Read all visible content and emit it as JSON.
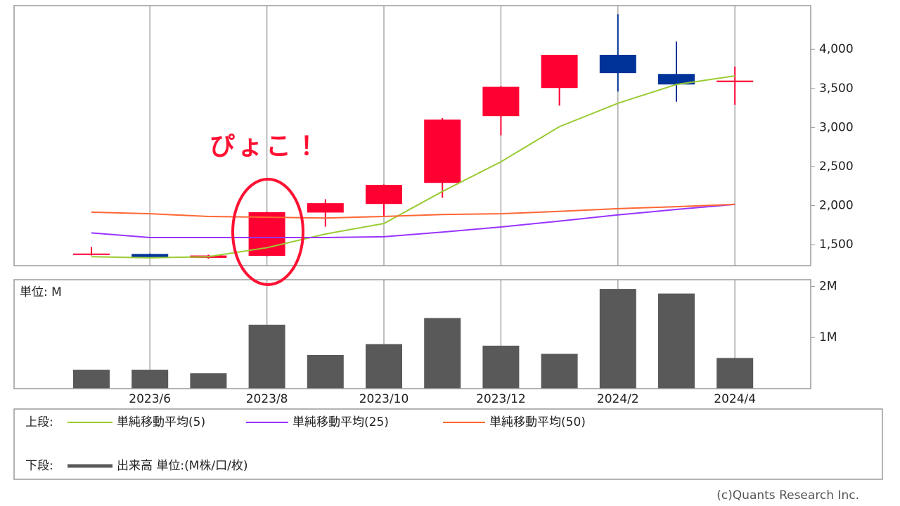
{
  "chart_data": [
    {
      "type": "candlestick",
      "open": [
        1370,
        1380,
        1330,
        1355,
        1910,
        2020,
        2290,
        3145,
        3505,
        3930,
        3685,
        3580
      ],
      "high": [
        1470,
        1385,
        1370,
        1920,
        2080,
        2270,
        3120,
        3530,
        3930,
        4450,
        4100,
        3780
      ],
      "low": [
        1360,
        1330,
        1320,
        1350,
        1730,
        1870,
        2100,
        2900,
        3280,
        3460,
        3330,
        3290
      ],
      "close": [
        1385,
        1340,
        1360,
        1915,
        2030,
        2265,
        3100,
        3520,
        3930,
        3695,
        3550,
        3600
      ],
      "up_color": "#ff0033",
      "down_color": "#003399",
      "series": [
        {
          "name": "単純移動平均(5)",
          "color": "#99cc33",
          "values": [
            1345,
            1330,
            1345,
            1460,
            1635,
            1770,
            2180,
            2560,
            3010,
            3310,
            3550,
            3660
          ]
        },
        {
          "name": "単純移動平均(25)",
          "color": "#9933ff",
          "values": [
            1650,
            1590,
            1590,
            1590,
            1590,
            1600,
            1660,
            1725,
            1800,
            1880,
            1950,
            2015
          ]
        },
        {
          "name": "単純移動平均(50)",
          "color": "#ff6633",
          "values": [
            1915,
            1895,
            1860,
            1850,
            1840,
            1860,
            1885,
            1895,
            1925,
            1960,
            1985,
            2015
          ]
        }
      ],
      "ylim": [
        1230,
        4560
      ],
      "yticks": [
        {
          "value": 1500,
          "label": "1,500"
        },
        {
          "value": 2000,
          "label": "2,000"
        },
        {
          "value": 2500,
          "label": "2,500"
        },
        {
          "value": 3000,
          "label": "3,000"
        },
        {
          "value": 3500,
          "label": "3,500"
        },
        {
          "value": 4000,
          "label": "4,000"
        }
      ],
      "annotation": "ぴょこ！"
    },
    {
      "type": "bar",
      "categories": [
        null,
        "2023/6",
        null,
        "2023/8",
        null,
        "2023/10",
        null,
        "2023/12",
        null,
        "2024/2",
        null,
        "2024/4"
      ],
      "unit_label": "単位: M",
      "series": [
        {
          "name": "出来高 単位:(M株/口/枚)",
          "color": "#595959",
          "values": [
            0.37,
            0.37,
            0.3,
            1.25,
            0.66,
            0.87,
            1.38,
            0.84,
            0.68,
            1.95,
            1.86,
            0.6
          ]
        }
      ],
      "ylim": [
        0,
        2.13
      ],
      "yticks": [
        {
          "value": 1,
          "label": "1M"
        },
        {
          "value": 2,
          "label": "2M"
        }
      ]
    }
  ],
  "legend": {
    "upper": "上段:",
    "lower": "下段:"
  },
  "credit": "(c)Quants Research Inc."
}
